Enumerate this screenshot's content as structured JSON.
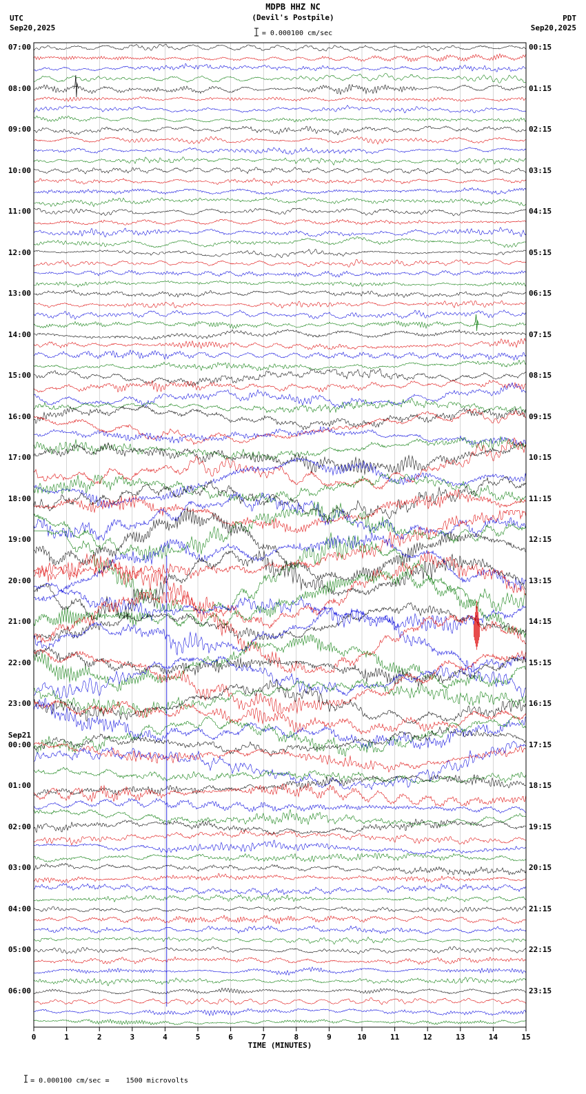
{
  "header": {
    "station": "MDPB HHZ NC",
    "location": "(Devil's Postpile)",
    "left_tz": "UTC",
    "left_date": "Sep20,2025",
    "right_tz": "PDT",
    "right_date": "Sep20,2025",
    "scale_label": "= 0.000100 cm/sec"
  },
  "footer": {
    "xlabel": "TIME (MINUTES)",
    "note": "= 0.000100 cm/sec =    1500 microvolts"
  },
  "chart_data": {
    "type": "line",
    "subtype": "helicorder-seismogram",
    "title": "MDPB HHZ NC (Devil's Postpile)",
    "x_range_minutes": [
      0,
      15
    ],
    "x_ticks": [
      "0",
      "1",
      "2",
      "3",
      "4",
      "5",
      "6",
      "7",
      "8",
      "9",
      "10",
      "11",
      "12",
      "13",
      "14",
      "15"
    ],
    "rows": 96,
    "rows_per_hour": 4,
    "minutes_per_row": 15,
    "trace_colors": [
      "#000000",
      "#dd0000",
      "#0000dd",
      "#007700"
    ],
    "grid_color": "#aaaaaa",
    "left_labels_utc": [
      "07:00",
      "08:00",
      "09:00",
      "10:00",
      "11:00",
      "12:00",
      "13:00",
      "14:00",
      "15:00",
      "16:00",
      "17:00",
      "18:00",
      "19:00",
      "20:00",
      "21:00",
      "22:00",
      "23:00",
      "00:00",
      "01:00",
      "02:00",
      "03:00",
      "04:00",
      "05:00",
      "06:00"
    ],
    "right_labels_pdt": [
      "00:15",
      "01:15",
      "02:15",
      "03:15",
      "04:15",
      "05:15",
      "06:15",
      "07:15",
      "08:15",
      "09:15",
      "10:15",
      "11:15",
      "12:15",
      "13:15",
      "14:15",
      "15:15",
      "16:15",
      "17:15",
      "18:15",
      "19:15",
      "20:15",
      "21:15",
      "22:15",
      "23:15"
    ],
    "date_change": {
      "hour_index": 17,
      "text": "Sep21"
    },
    "amplitude_profile": [
      0.9,
      1.0,
      0.95,
      1.05,
      1.1,
      1.0,
      1.15,
      1.3,
      2.0,
      2.8,
      4.0,
      4.8,
      5.4,
      5.6,
      5.3,
      4.8,
      4.2,
      3.6,
      2.4,
      1.8,
      1.5,
      1.1,
      0.95,
      0.85
    ],
    "events": [
      {
        "label": "dip-0800",
        "hour_index": 1,
        "row_in_hour": 0,
        "minute": 1.3,
        "amplitude": 20,
        "style": "spike"
      },
      {
        "label": "spike-1345",
        "hour_index": 6,
        "row_in_hour": 3,
        "minute": 13.5,
        "amplitude": 15,
        "style": "spike"
      },
      {
        "label": "burst-2115",
        "hour_index": 14,
        "row_in_hour": 1,
        "minute": 13.5,
        "amplitude": 46,
        "style": "burst"
      }
    ],
    "gap_line": {
      "minute": 4.05,
      "from_row": 50,
      "to_row": 93,
      "color_index": 2
    },
    "seed": 1234567
  }
}
